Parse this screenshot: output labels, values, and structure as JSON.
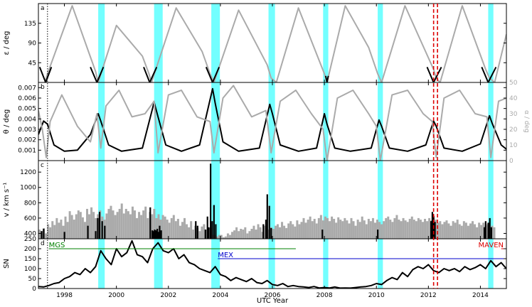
{
  "chart_data": [
    {
      "type": "line",
      "panel_label": "a",
      "ylabel": "ε / deg",
      "xlim": [
        1997.0,
        2015.0
      ],
      "ylim": [
        0,
        180
      ],
      "yticks": [
        45,
        90,
        135
      ],
      "series": [
        {
          "color": "#aaaaaa",
          "x": [
            1997.25,
            1997.35,
            1998.3,
            1999.2,
            1999.3,
            2000.0,
            2001.0,
            2001.25,
            2001.35,
            2002.3,
            2003.3,
            2003.6,
            2003.75,
            2004.7,
            2005.8,
            2005.95,
            2006.15,
            2007.0,
            2008.0,
            2008.1,
            2008.8,
            2009.7,
            2010.05,
            2010.2,
            2011.1,
            2012.2,
            2012.3,
            2012.45,
            2013.3,
            2014.2,
            2014.35,
            2014.55,
            2015.0
          ],
          "y": [
            0,
            20,
            175,
            25,
            0,
            130,
            60,
            20,
            0,
            170,
            70,
            20,
            0,
            165,
            40,
            10,
            0,
            170,
            20,
            0,
            175,
            80,
            20,
            0,
            175,
            30,
            10,
            0,
            175,
            30,
            10,
            0,
            110
          ]
        },
        {
          "color": "#000000",
          "x": [
            1997.05,
            1997.28,
            1997.5,
            1999.0,
            1999.25,
            1999.5,
            2001.05,
            2001.28,
            2001.55,
            2003.45,
            2003.7,
            2003.95,
            2008.05,
            2008.1,
            2008.15,
            2011.95,
            2012.2,
            2012.5,
            2014.05,
            2014.3,
            2014.6
          ],
          "y": [
            35,
            0,
            35,
            35,
            0,
            35,
            35,
            0,
            35,
            35,
            0,
            35,
            15,
            0,
            15,
            35,
            0,
            35,
            35,
            0,
            35
          ],
          "segments": 7
        }
      ]
    },
    {
      "type": "line",
      "panel_label": "b",
      "ylabel": "θ / deg",
      "ylabel_right": "α / deg",
      "xlim": [
        1997.0,
        2015.0
      ],
      "ylim": [
        0,
        0.0075
      ],
      "yticks": [
        0.001,
        0.002,
        0.003,
        0.004,
        0.005,
        0.006,
        0.007
      ],
      "ylim_right": [
        0,
        50
      ],
      "yticks_right": [
        0,
        10,
        20,
        30,
        40,
        50
      ],
      "series": [
        {
          "axis": "left",
          "color": "#000000",
          "x": [
            1997.0,
            1997.2,
            1997.35,
            1997.6,
            1998.0,
            1998.5,
            1999.0,
            1999.3,
            1999.4,
            1999.7,
            2000.2,
            2001.0,
            2001.45,
            2001.6,
            2001.9,
            2002.5,
            2003.2,
            2003.7,
            2003.8,
            2004.1,
            2004.7,
            2005.5,
            2005.9,
            2006.0,
            2006.3,
            2007.0,
            2007.7,
            2008.0,
            2008.1,
            2008.4,
            2009.0,
            2009.8,
            2010.1,
            2010.2,
            2010.5,
            2011.2,
            2011.9,
            2012.2,
            2012.3,
            2012.6,
            2013.3,
            2014.0,
            2014.35,
            2014.45,
            2014.8,
            2015.0
          ],
          "y": [
            0.0025,
            0.0038,
            0.0035,
            0.0015,
            0.0009,
            0.001,
            0.0025,
            0.0045,
            0.0038,
            0.0015,
            0.0009,
            0.0012,
            0.0056,
            0.0042,
            0.0015,
            0.0009,
            0.0015,
            0.0069,
            0.0055,
            0.0018,
            0.0009,
            0.0012,
            0.0054,
            0.0045,
            0.0015,
            0.0009,
            0.0012,
            0.0045,
            0.0035,
            0.0012,
            0.0009,
            0.0012,
            0.0039,
            0.0033,
            0.0012,
            0.0009,
            0.0015,
            0.0038,
            0.0033,
            0.0012,
            0.0009,
            0.0016,
            0.0043,
            0.0036,
            0.0015,
            0.0011
          ]
        },
        {
          "axis": "right",
          "color": "#aaaaaa",
          "x": [
            1997.0,
            1997.15,
            1997.3,
            1997.45,
            1997.9,
            1998.5,
            1999.0,
            1999.25,
            1999.4,
            1999.6,
            2000.1,
            2000.6,
            2001.1,
            2001.45,
            2001.6,
            2002.0,
            2002.5,
            2003.1,
            2003.6,
            2003.75,
            2004.1,
            2004.5,
            2005.2,
            2005.75,
            2005.95,
            2006.3,
            2006.9,
            2007.5,
            2007.95,
            2008.1,
            2008.5,
            2009.1,
            2009.7,
            2010.0,
            2010.15,
            2010.6,
            2011.2,
            2011.8,
            2012.15,
            2012.3,
            2012.6,
            2013.2,
            2013.8,
            2014.25,
            2014.4,
            2014.7,
            2015.0
          ],
          "y": [
            32,
            20,
            2,
            25,
            42,
            22,
            12,
            30,
            8,
            35,
            45,
            28,
            30,
            38,
            5,
            42,
            45,
            28,
            25,
            5,
            40,
            48,
            28,
            32,
            5,
            38,
            45,
            30,
            20,
            0,
            40,
            45,
            30,
            22,
            0,
            42,
            45,
            30,
            25,
            2,
            40,
            45,
            30,
            28,
            2,
            38,
            40
          ]
        }
      ]
    },
    {
      "type": "bar",
      "panel_label": "c",
      "ylabel": "v / km s⁻¹",
      "xlim": [
        1997.0,
        2015.0
      ],
      "ylim": [
        330,
        1350
      ],
      "yticks": [
        400,
        600,
        800,
        1000,
        1200
      ],
      "series": [
        {
          "color": "#aaaaaa",
          "x_start": 1997.0,
          "x_step": 0.0833,
          "values": [
            450,
            430,
            470,
            400,
            520,
            480,
            560,
            510,
            600,
            540,
            580,
            500,
            620,
            550,
            690,
            640,
            580,
            650,
            700,
            680,
            610,
            550,
            720,
            650,
            740,
            680,
            600,
            650,
            700,
            620,
            580,
            660,
            720,
            760,
            700,
            640,
            680,
            720,
            790,
            660,
            720,
            690,
            650,
            750,
            700,
            600,
            680,
            640,
            700,
            750,
            600,
            680,
            650,
            720,
            600,
            650,
            580,
            640,
            620,
            580,
            540,
            600,
            640,
            560,
            590,
            500,
            550,
            600,
            520,
            480,
            560,
            450,
            500,
            470,
            430,
            490,
            520,
            450,
            420,
            470,
            380,
            380,
            360,
            380,
            380,
            350,
            360,
            400,
            380,
            420,
            440,
            480,
            430,
            460,
            450,
            480,
            400,
            430,
            460,
            500,
            450,
            520,
            480,
            420,
            500,
            470,
            450,
            480,
            460,
            500,
            520,
            480,
            550,
            500,
            470,
            530,
            560,
            520,
            490,
            570,
            520,
            550,
            600,
            540,
            580,
            620,
            560,
            590,
            530,
            600,
            640,
            570,
            620,
            600,
            560,
            620,
            590,
            540,
            610,
            580,
            560,
            600,
            570,
            530,
            600,
            560,
            500,
            580,
            550,
            620,
            570,
            520,
            590,
            560,
            600,
            540,
            580,
            550,
            520,
            560,
            600,
            620,
            580,
            550,
            600,
            640,
            580,
            560,
            600,
            570,
            550,
            590,
            620,
            580,
            560,
            600,
            580,
            550,
            590,
            560,
            600,
            570,
            550,
            580,
            540,
            560,
            520,
            550,
            570,
            530,
            500,
            560,
            540,
            580,
            520,
            500,
            560,
            540,
            500,
            530,
            560,
            520,
            480,
            540,
            510,
            540,
            500,
            520,
            480,
            500,
            480
          ]
        },
        {
          "color": "#000000",
          "x": [
            1997.12,
            1997.2,
            1998.0,
            1998.9,
            1999.2,
            1999.28,
            1999.35,
            1999.45,
            1999.55,
            2001.3,
            2001.38,
            2001.42,
            2001.47,
            2001.52,
            2001.57,
            2001.62,
            2001.66,
            2001.72,
            2003.05,
            2003.12,
            2003.42,
            2003.5,
            2003.55,
            2003.62,
            2003.68,
            2003.75,
            2003.82,
            2005.65,
            2005.75,
            2005.8,
            2005.88,
            2005.95,
            2007.92,
            2010.05,
            2012.1,
            2012.15,
            2012.2,
            2012.25,
            2014.15,
            2014.2,
            2014.3,
            2014.36,
            2014.42
          ],
          "values": [
            430,
            460,
            420,
            500,
            430,
            600,
            680,
            560,
            500,
            740,
            440,
            430,
            450,
            440,
            460,
            420,
            500,
            440,
            560,
            500,
            450,
            620,
            480,
            1310,
            560,
            770,
            520,
            520,
            580,
            910,
            760,
            470,
            450,
            450,
            560,
            680,
            630,
            550,
            480,
            560,
            540,
            600,
            480
          ]
        }
      ]
    },
    {
      "type": "line",
      "panel_label": "d",
      "ylabel": "SN",
      "xlabel": "UTC Year",
      "xlim": [
        1997.0,
        2015.0
      ],
      "ylim": [
        0,
        250
      ],
      "yticks": [
        0,
        50,
        100,
        150,
        200,
        250
      ],
      "xticks": [
        1998,
        2000,
        2002,
        2004,
        2006,
        2008,
        2010,
        2012,
        2014
      ],
      "xticklabels": [
        "1998",
        "2000",
        "2002",
        "2004",
        "2006",
        "2008",
        "2010",
        "2012",
        "2014"
      ],
      "series": [
        {
          "color": "#000000",
          "x": [
            1997.0,
            1997.2,
            1997.4,
            1997.6,
            1997.8,
            1998.0,
            1998.2,
            1998.4,
            1998.6,
            1998.8,
            1999.0,
            1999.2,
            1999.4,
            1999.6,
            1999.8,
            2000.0,
            2000.2,
            2000.4,
            2000.6,
            2000.8,
            2001.0,
            2001.2,
            2001.4,
            2001.6,
            2001.8,
            2002.0,
            2002.2,
            2002.4,
            2002.6,
            2002.8,
            2003.0,
            2003.2,
            2003.4,
            2003.6,
            2003.8,
            2004.0,
            2004.2,
            2004.4,
            2004.6,
            2004.8,
            2005.0,
            2005.2,
            2005.4,
            2005.6,
            2005.8,
            2006.0,
            2006.2,
            2006.4,
            2006.6,
            2006.8,
            2007.0,
            2007.2,
            2007.4,
            2007.6,
            2007.8,
            2008.0,
            2008.2,
            2008.4,
            2008.6,
            2008.8,
            2009.0,
            2009.2,
            2009.4,
            2009.6,
            2009.8,
            2010.0,
            2010.2,
            2010.4,
            2010.6,
            2010.8,
            2011.0,
            2011.2,
            2011.4,
            2011.6,
            2011.8,
            2012.0,
            2012.2,
            2012.4,
            2012.6,
            2012.8,
            2013.0,
            2013.2,
            2013.4,
            2013.6,
            2013.8,
            2014.0,
            2014.2,
            2014.4,
            2014.6,
            2014.8,
            2015.0
          ],
          "y": [
            10,
            8,
            15,
            25,
            30,
            50,
            60,
            80,
            70,
            100,
            80,
            110,
            190,
            150,
            120,
            200,
            160,
            180,
            240,
            170,
            160,
            130,
            200,
            230,
            190,
            180,
            200,
            150,
            170,
            130,
            120,
            100,
            90,
            80,
            110,
            70,
            60,
            40,
            55,
            45,
            35,
            50,
            30,
            25,
            40,
            20,
            15,
            25,
            10,
            15,
            10,
            8,
            5,
            10,
            3,
            5,
            3,
            8,
            2,
            3,
            2,
            5,
            8,
            10,
            15,
            25,
            20,
            40,
            55,
            45,
            80,
            60,
            95,
            110,
            100,
            120,
            90,
            80,
            100,
            90,
            100,
            85,
            110,
            95,
            105,
            120,
            100,
            140,
            110,
            130,
            100
          ]
        }
      ],
      "missions": [
        {
          "name": "MGS",
          "color": "#008000",
          "x_start": 1997.4,
          "x_end": 2006.9,
          "level": 200
        },
        {
          "name": "MEX",
          "color": "#0000cc",
          "x_start": 2003.9,
          "x_end": 2015.0,
          "level": 150
        },
        {
          "name": "MAVEN",
          "color": "#dd0000",
          "x_start": 2014.8,
          "x_end": 2015.0,
          "level": 200
        }
      ]
    }
  ],
  "shading": {
    "color": "#00ffff",
    "bands": [
      [
        1999.3,
        1999.55
      ],
      [
        2001.45,
        2001.78
      ],
      [
        2003.65,
        2003.98
      ],
      [
        2005.85,
        2006.1
      ],
      [
        2007.95,
        2008.15
      ],
      [
        2010.05,
        2010.25
      ],
      [
        2014.3,
        2014.5
      ]
    ]
  },
  "markers": {
    "dotted_black": [
      1997.35
    ],
    "dashed_red": [
      2012.2,
      2012.35
    ]
  }
}
